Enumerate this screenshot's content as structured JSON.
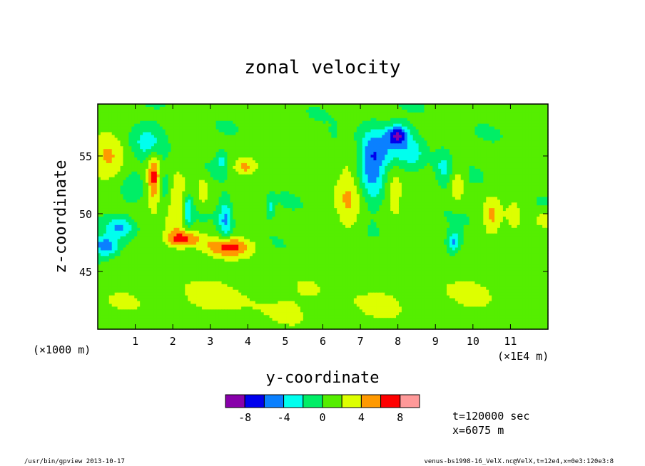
{
  "chart_data": {
    "type": "heatmap",
    "title": "zonal velocity",
    "xlabel": "y-coordinate",
    "ylabel": "z-coordinate",
    "x_unit_left": "(×1000 m)",
    "x_unit_right": "(×1E4 m)",
    "xlim": [
      0,
      12
    ],
    "ylim": [
      40,
      59.5
    ],
    "x_ticks": [
      1,
      2,
      3,
      4,
      5,
      6,
      7,
      8,
      9,
      10,
      11
    ],
    "y_ticks": [
      45,
      50,
      55
    ],
    "colorbar": {
      "levels": [
        -10,
        -8,
        -6,
        -4,
        -2,
        0,
        2,
        4,
        6,
        8,
        10
      ],
      "colors": [
        "#8800aa",
        "#0000ee",
        "#0a80ff",
        "#00ffee",
        "#00ee66",
        "#55ee00",
        "#ddff00",
        "#ff9900",
        "#ff0000",
        "#ff9999"
      ],
      "tick_labels": [
        "-8",
        "-4",
        "0",
        "4",
        "8"
      ],
      "tick_values": [
        -8,
        -4,
        0,
        4,
        8
      ]
    },
    "background_value": 0.5,
    "features": [
      {
        "x": 0.3,
        "y": 54.8,
        "sx": 0.35,
        "sy": 1.8,
        "v": 3.5
      },
      {
        "x": 0.9,
        "y": 52.5,
        "sx": 0.25,
        "sy": 1.3,
        "v": -1.2
      },
      {
        "x": 0.2,
        "y": 47.2,
        "sx": 0.25,
        "sy": 0.6,
        "v": -6
      },
      {
        "x": 0.6,
        "y": 48.8,
        "sx": 0.25,
        "sy": 0.6,
        "v": -4.5
      },
      {
        "x": 1.4,
        "y": 56.2,
        "sx": 0.3,
        "sy": 1.0,
        "v": -3.5
      },
      {
        "x": 1.5,
        "y": 53.0,
        "sx": 0.12,
        "sy": 1.6,
        "v": 6
      },
      {
        "x": 1.8,
        "y": 52.5,
        "sx": 0.15,
        "sy": 1.2,
        "v": -2.5
      },
      {
        "x": 2.1,
        "y": 50.5,
        "sx": 0.2,
        "sy": 2.2,
        "v": 3.5
      },
      {
        "x": 2.4,
        "y": 50.2,
        "sx": 0.08,
        "sy": 1.0,
        "v": -5
      },
      {
        "x": 2.3,
        "y": 47.8,
        "sx": 0.35,
        "sy": 0.5,
        "v": 5.5
      },
      {
        "x": 2.8,
        "y": 52.0,
        "sx": 0.1,
        "sy": 0.8,
        "v": 3.5
      },
      {
        "x": 3.4,
        "y": 49.5,
        "sx": 0.12,
        "sy": 1.2,
        "v": -5
      },
      {
        "x": 3.5,
        "y": 47.1,
        "sx": 0.45,
        "sy": 0.6,
        "v": 6
      },
      {
        "x": 3.3,
        "y": 54.5,
        "sx": 0.1,
        "sy": 0.6,
        "v": -3
      },
      {
        "x": 3.9,
        "y": 54.0,
        "sx": 0.2,
        "sy": 0.5,
        "v": 3.5
      },
      {
        "x": 4.6,
        "y": 50.5,
        "sx": 0.07,
        "sy": 0.6,
        "v": -3
      },
      {
        "x": 6.7,
        "y": 51.2,
        "sx": 0.25,
        "sy": 2.2,
        "v": 3.5
      },
      {
        "x": 7.3,
        "y": 54.2,
        "sx": 0.25,
        "sy": 2.0,
        "v": -5.5
      },
      {
        "x": 7.7,
        "y": 55.6,
        "sx": 0.45,
        "sy": 1.2,
        "v": -3
      },
      {
        "x": 8.0,
        "y": 56.8,
        "sx": 0.2,
        "sy": 0.6,
        "v": -7
      },
      {
        "x": 7.9,
        "y": 52.0,
        "sx": 0.18,
        "sy": 1.5,
        "v": 3
      },
      {
        "x": 8.4,
        "y": 55.2,
        "sx": 0.25,
        "sy": 1.0,
        "v": -2.5
      },
      {
        "x": 9.2,
        "y": 54.0,
        "sx": 0.15,
        "sy": 1.2,
        "v": -3
      },
      {
        "x": 9.6,
        "y": 52.5,
        "sx": 0.12,
        "sy": 1.0,
        "v": 3.5
      },
      {
        "x": 9.5,
        "y": 47.6,
        "sx": 0.12,
        "sy": 0.6,
        "v": -5
      },
      {
        "x": 10.5,
        "y": 49.8,
        "sx": 0.18,
        "sy": 1.2,
        "v": 3.5
      },
      {
        "x": 11.1,
        "y": 49.8,
        "sx": 0.12,
        "sy": 1.0,
        "v": 2.5
      },
      {
        "x": 11.9,
        "y": 49.5,
        "sx": 0.15,
        "sy": 0.5,
        "v": 3.5
      },
      {
        "x": 5.2,
        "y": 55.5,
        "sx": 1.2,
        "sy": 1.5,
        "v": 0.4
      },
      {
        "x": 6.0,
        "y": 42.0,
        "sx": 3.0,
        "sy": 1.8,
        "v": 1.2
      },
      {
        "x": 2.0,
        "y": 43.0,
        "sx": 2.0,
        "sy": 1.5,
        "v": 1.2
      },
      {
        "x": 10.0,
        "y": 44.0,
        "sx": 2.0,
        "sy": 2.0,
        "v": 1.0
      },
      {
        "x": 6.3,
        "y": 57.0,
        "sx": 0.06,
        "sy": 0.4,
        "v": -3
      }
    ]
  },
  "annotations": {
    "time": "t=120000 sec",
    "position": "x=6075 m",
    "footer_left": "/usr/bin/gpview  2013-10-17",
    "footer_right": "venus-bs1998-16_VelX.nc@VelX,t=12e4,x=0e3:120e3:8"
  }
}
